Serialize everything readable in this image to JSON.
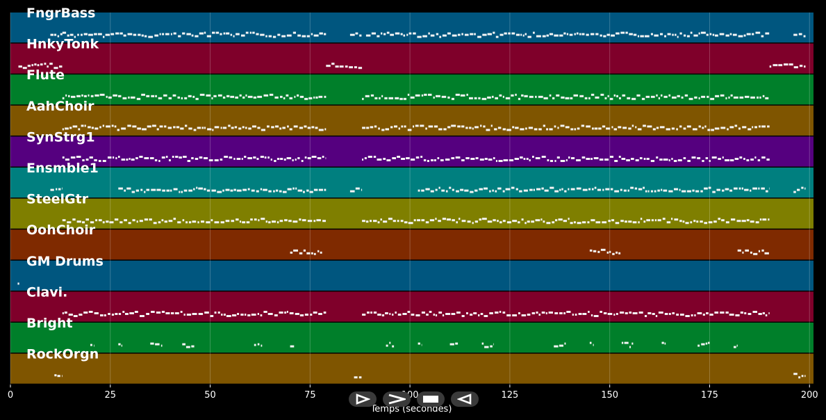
{
  "chart_data": {
    "type": "piano-roll",
    "xlabel": "Temps (secondes)",
    "xlim": [
      0,
      201
    ],
    "xticks": [
      0,
      25,
      50,
      75,
      100,
      125,
      150,
      175,
      200
    ],
    "grid": true,
    "tracks": [
      {
        "name": "FngrBass",
        "color": "#00567f",
        "segments": [
          [
            10,
            13
          ],
          [
            13,
            79
          ],
          [
            85,
            88
          ],
          [
            89,
            190
          ],
          [
            196,
            199
          ]
        ]
      },
      {
        "name": "HnkyTonk",
        "color": "#7f002a",
        "segments": [
          [
            2,
            13
          ],
          [
            79,
            88
          ],
          [
            190,
            199
          ]
        ]
      },
      {
        "name": "Flute",
        "color": "#007f2a",
        "segments": [
          [
            13,
            79
          ],
          [
            88,
            190
          ]
        ]
      },
      {
        "name": "AahChoir",
        "color": "#7f5500",
        "segments": [
          [
            13,
            79
          ],
          [
            88,
            190
          ]
        ]
      },
      {
        "name": "SynStrg1",
        "color": "#55007f",
        "segments": [
          [
            13,
            79
          ],
          [
            88,
            190
          ]
        ]
      },
      {
        "name": "Ensmble1",
        "color": "#007f7f",
        "segments": [
          [
            10,
            13
          ],
          [
            27,
            79
          ],
          [
            85,
            88
          ],
          [
            102,
            190
          ],
          [
            196,
            199
          ]
        ]
      },
      {
        "name": "SteelGtr",
        "color": "#7f7f00",
        "segments": [
          [
            13,
            79
          ],
          [
            88,
            190
          ]
        ]
      },
      {
        "name": "OohChoir",
        "color": "#7f2a00",
        "segments": [
          [
            70,
            78
          ],
          [
            145,
            153
          ],
          [
            182,
            190
          ]
        ]
      },
      {
        "name": "GM Drums",
        "color": "#00567f",
        "segments": [
          [
            1.8,
            2.2
          ]
        ]
      },
      {
        "name": "Clavi.",
        "color": "#7f002a",
        "segments": [
          [
            13,
            79
          ],
          [
            88,
            190
          ]
        ]
      },
      {
        "name": "Bright",
        "color": "#007f2a",
        "segments": [
          [
            20,
            21
          ],
          [
            27,
            28
          ],
          [
            35,
            38
          ],
          [
            43,
            46
          ],
          [
            61,
            63
          ],
          [
            70,
            71
          ],
          [
            94,
            96
          ],
          [
            102,
            103
          ],
          [
            110,
            112
          ],
          [
            118,
            121
          ],
          [
            136,
            139
          ],
          [
            145,
            146
          ],
          [
            153,
            156
          ],
          [
            163,
            164
          ],
          [
            172,
            175
          ],
          [
            181,
            182
          ]
        ]
      },
      {
        "name": "RockOrgn",
        "color": "#7f5500",
        "segments": [
          [
            11,
            13
          ],
          [
            86,
            88
          ],
          [
            196,
            199
          ]
        ]
      }
    ]
  },
  "controls": [
    {
      "name": "play",
      "icon": "play-outline-icon"
    },
    {
      "name": "fast-forward",
      "icon": "forward-chevron-icon"
    },
    {
      "name": "stop",
      "icon": "stop-square-icon"
    },
    {
      "name": "rewind",
      "icon": "rewind-outline-icon"
    }
  ]
}
